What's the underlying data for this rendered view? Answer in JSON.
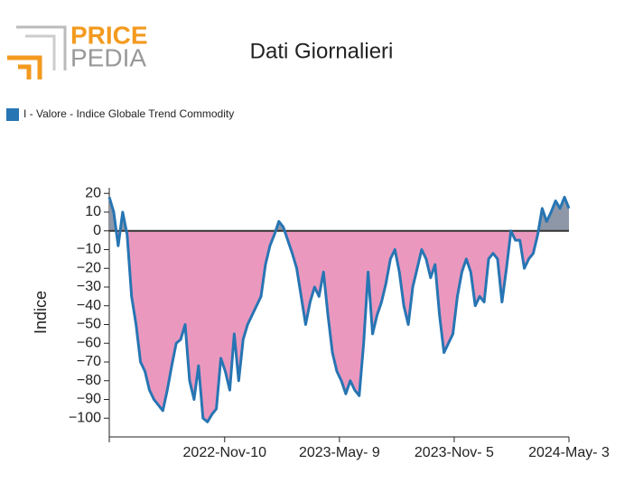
{
  "logo": {
    "top": "PRICE",
    "bottom": "PEDIA"
  },
  "chart_data": {
    "type": "area-line",
    "title": "Dati Giornalieri",
    "y_label": "Indice",
    "series": [
      {
        "name": "I - Valore - Indice Globale Trend Commodity",
        "color": "#2775b3",
        "positive_fill": "#8e97a8",
        "negative_fill": "#eb98bf",
        "values": [
          18,
          10,
          -8,
          10,
          -2,
          -35,
          -50,
          -70,
          -75,
          -85,
          -90,
          -93,
          -96,
          -85,
          -72,
          -60,
          -58,
          -50,
          -80,
          -90,
          -72,
          -100,
          -102,
          -98,
          -95,
          -68,
          -75,
          -85,
          -55,
          -80,
          -58,
          -50,
          -45,
          -40,
          -35,
          -18,
          -8,
          -2,
          5,
          2,
          -5,
          -12,
          -20,
          -35,
          -50,
          -38,
          -30,
          -35,
          -22,
          -45,
          -65,
          -75,
          -80,
          -87,
          -80,
          -85,
          -88,
          -60,
          -22,
          -55,
          -45,
          -38,
          -28,
          -15,
          -10,
          -22,
          -40,
          -50,
          -30,
          -20,
          -10,
          -15,
          -25,
          -18,
          -45,
          -65,
          -60,
          -55,
          -35,
          -22,
          -15,
          -22,
          -40,
          -35,
          -38,
          -15,
          -12,
          -15,
          -38,
          -20,
          0,
          -5,
          -5,
          -20,
          -15,
          -12,
          -2,
          12,
          5,
          10,
          16,
          12,
          18,
          12
        ]
      }
    ],
    "x": [
      "2022-05-13",
      "2022-05-20",
      "2022-05-27",
      "2022-06-03",
      "2022-06-10",
      "2022-06-17",
      "2022-06-24",
      "2022-07-01",
      "2022-07-08",
      "2022-07-15",
      "2022-07-22",
      "2022-07-29",
      "2022-08-05",
      "2022-08-12",
      "2022-08-19",
      "2022-08-26",
      "2022-09-02",
      "2022-09-09",
      "2022-09-16",
      "2022-09-23",
      "2022-09-30",
      "2022-10-07",
      "2022-10-14",
      "2022-10-21",
      "2022-10-28",
      "2022-11-04",
      "2022-11-11",
      "2022-11-18",
      "2022-11-25",
      "2022-12-02",
      "2022-12-09",
      "2022-12-16",
      "2022-12-23",
      "2022-12-30",
      "2023-01-06",
      "2023-01-13",
      "2023-01-20",
      "2023-01-27",
      "2023-02-03",
      "2023-02-10",
      "2023-02-17",
      "2023-02-24",
      "2023-03-03",
      "2023-03-10",
      "2023-03-17",
      "2023-03-24",
      "2023-03-31",
      "2023-04-07",
      "2023-04-14",
      "2023-04-21",
      "2023-04-28",
      "2023-05-05",
      "2023-05-12",
      "2023-05-19",
      "2023-05-26",
      "2023-06-02",
      "2023-06-09",
      "2023-06-16",
      "2023-06-23",
      "2023-06-30",
      "2023-07-07",
      "2023-07-14",
      "2023-07-21",
      "2023-07-28",
      "2023-08-04",
      "2023-08-11",
      "2023-08-18",
      "2023-08-25",
      "2023-09-01",
      "2023-09-08",
      "2023-09-15",
      "2023-09-22",
      "2023-09-29",
      "2023-10-06",
      "2023-10-13",
      "2023-10-20",
      "2023-10-27",
      "2023-11-03",
      "2023-11-10",
      "2023-11-17",
      "2023-11-24",
      "2023-12-01",
      "2023-12-08",
      "2023-12-15",
      "2023-12-22",
      "2023-12-29",
      "2024-01-05",
      "2024-01-12",
      "2024-01-19",
      "2024-01-26",
      "2024-02-02",
      "2024-02-09",
      "2024-02-16",
      "2024-02-23",
      "2024-03-01",
      "2024-03-08",
      "2024-03-15",
      "2024-03-22",
      "2024-03-29",
      "2024-04-05",
      "2024-04-12",
      "2024-04-19",
      "2024-04-26",
      "2024-05-03"
    ],
    "xlim": [
      "2022-05-13",
      "2024-05-03"
    ],
    "xticks": [
      {
        "value": "2022-11-10",
        "label": "2022-Nov-10"
      },
      {
        "value": "2023-05-09",
        "label": "2023-May- 9"
      },
      {
        "value": "2023-11-05",
        "label": "2023-Nov- 5"
      },
      {
        "value": "2024-05-03",
        "label": "2024-May- 3"
      }
    ],
    "ylim": [
      -110,
      23
    ],
    "yticks": [
      {
        "value": -100,
        "label": "−100"
      },
      {
        "value": -90,
        "label": "−90"
      },
      {
        "value": -80,
        "label": "−80"
      },
      {
        "value": -70,
        "label": "−70"
      },
      {
        "value": -60,
        "label": "−60"
      },
      {
        "value": -50,
        "label": "−50"
      },
      {
        "value": -40,
        "label": "−40"
      },
      {
        "value": -30,
        "label": "−30"
      },
      {
        "value": -20,
        "label": "−20"
      },
      {
        "value": -10,
        "label": "−10"
      },
      0,
      10,
      20
    ],
    "legend": "top-left"
  }
}
